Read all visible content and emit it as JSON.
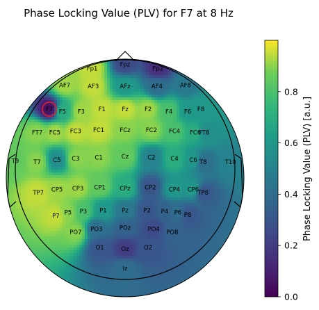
{
  "chart_data": {
    "type": "heatmap",
    "title": "Phase Locking Value (PLV) for F7 at 8 Hz",
    "colorbar_label": "Phase Locking Value (PLV) [a.u.]",
    "colormap": "viridis",
    "colorbar_range": [
      0.0,
      1.0
    ],
    "colorbar_ticks": [
      {
        "value": 0.0,
        "label": "0.0"
      },
      {
        "value": 0.2,
        "label": "0.2"
      },
      {
        "value": 0.4,
        "label": "0.4"
      },
      {
        "value": 0.6,
        "label": "0.6"
      },
      {
        "value": 0.8,
        "label": "0.8"
      }
    ],
    "seed_electrode": "F7",
    "electrodes": [
      {
        "name": "Fp1",
        "x": -0.3,
        "y": 0.92,
        "plv": 0.95
      },
      {
        "name": "Fpz",
        "x": 0.0,
        "y": 0.96,
        "plv": 0.25
      },
      {
        "name": "Fp2",
        "x": 0.3,
        "y": 0.92,
        "plv": 0.15
      },
      {
        "name": "AF7",
        "x": -0.55,
        "y": 0.77,
        "plv": 0.92
      },
      {
        "name": "AF3",
        "x": -0.29,
        "y": 0.76,
        "plv": 0.95
      },
      {
        "name": "AFz",
        "x": 0.0,
        "y": 0.76,
        "plv": 0.6
      },
      {
        "name": "AF4",
        "x": 0.29,
        "y": 0.76,
        "plv": 0.4
      },
      {
        "name": "AF8",
        "x": 0.55,
        "y": 0.77,
        "plv": 0.45
      },
      {
        "name": "F7",
        "x": -0.69,
        "y": 0.55,
        "plv": 0.05
      },
      {
        "name": "F5",
        "x": -0.57,
        "y": 0.53,
        "plv": 0.7
      },
      {
        "name": "F3",
        "x": -0.4,
        "y": 0.53,
        "plv": 0.92
      },
      {
        "name": "F1",
        "x": -0.21,
        "y": 0.55,
        "plv": 0.95
      },
      {
        "name": "Fz",
        "x": 0.0,
        "y": 0.55,
        "plv": 0.95
      },
      {
        "name": "F2",
        "x": 0.21,
        "y": 0.55,
        "plv": 0.92
      },
      {
        "name": "F4",
        "x": 0.4,
        "y": 0.53,
        "plv": 0.8
      },
      {
        "name": "F6",
        "x": 0.57,
        "y": 0.53,
        "plv": 0.6
      },
      {
        "name": "F8",
        "x": 0.69,
        "y": 0.55,
        "plv": 0.6
      },
      {
        "name": "FT7",
        "x": -0.8,
        "y": 0.34,
        "plv": 0.9
      },
      {
        "name": "FC5",
        "x": -0.64,
        "y": 0.34,
        "plv": 0.92
      },
      {
        "name": "FC3",
        "x": -0.45,
        "y": 0.35,
        "plv": 0.95
      },
      {
        "name": "FC1",
        "x": -0.24,
        "y": 0.36,
        "plv": 0.95
      },
      {
        "name": "FCz",
        "x": 0.0,
        "y": 0.36,
        "plv": 0.9
      },
      {
        "name": "FC2",
        "x": 0.24,
        "y": 0.36,
        "plv": 0.9
      },
      {
        "name": "FC4",
        "x": 0.45,
        "y": 0.35,
        "plv": 0.8
      },
      {
        "name": "FC6",
        "x": 0.64,
        "y": 0.34,
        "plv": 0.7
      },
      {
        "name": "FT8",
        "x": 0.72,
        "y": 0.34,
        "plv": 0.55
      },
      {
        "name": "T9",
        "x": -1.0,
        "y": 0.08,
        "plv": 0.85
      },
      {
        "name": "T7",
        "x": -0.8,
        "y": 0.07,
        "plv": 0.9
      },
      {
        "name": "C5",
        "x": -0.62,
        "y": 0.09,
        "plv": 0.55
      },
      {
        "name": "C3",
        "x": -0.45,
        "y": 0.1,
        "plv": 0.9
      },
      {
        "name": "C1",
        "x": -0.24,
        "y": 0.11,
        "plv": 0.9
      },
      {
        "name": "Cz",
        "x": 0.0,
        "y": 0.12,
        "plv": 0.85
      },
      {
        "name": "C2",
        "x": 0.24,
        "y": 0.11,
        "plv": 0.5
      },
      {
        "name": "C4",
        "x": 0.45,
        "y": 0.1,
        "plv": 0.7
      },
      {
        "name": "C6",
        "x": 0.62,
        "y": 0.09,
        "plv": 0.6
      },
      {
        "name": "T8",
        "x": 0.71,
        "y": 0.07,
        "plv": 0.4
      },
      {
        "name": "T10",
        "x": 0.96,
        "y": 0.07,
        "plv": 0.5
      },
      {
        "name": "TP7",
        "x": -0.79,
        "y": -0.21,
        "plv": 0.95
      },
      {
        "name": "CP5",
        "x": -0.62,
        "y": -0.18,
        "plv": 0.92
      },
      {
        "name": "CP3",
        "x": -0.43,
        "y": -0.17,
        "plv": 0.92
      },
      {
        "name": "CP1",
        "x": -0.23,
        "y": -0.16,
        "plv": 0.85
      },
      {
        "name": "CPz",
        "x": 0.0,
        "y": -0.17,
        "plv": 0.7
      },
      {
        "name": "CP2",
        "x": 0.23,
        "y": -0.16,
        "plv": 0.3
      },
      {
        "name": "CP4",
        "x": 0.45,
        "y": -0.18,
        "plv": 0.6
      },
      {
        "name": "CP6",
        "x": 0.62,
        "y": -0.18,
        "plv": 0.6
      },
      {
        "name": "TP8",
        "x": 0.71,
        "y": -0.21,
        "plv": 0.3
      },
      {
        "name": "P7",
        "x": -0.63,
        "y": -0.42,
        "plv": 0.95
      },
      {
        "name": "P5",
        "x": -0.52,
        "y": -0.39,
        "plv": 0.9
      },
      {
        "name": "P3",
        "x": -0.38,
        "y": -0.38,
        "plv": 0.8
      },
      {
        "name": "P1",
        "x": -0.2,
        "y": -0.37,
        "plv": 0.6
      },
      {
        "name": "Pz",
        "x": 0.0,
        "y": -0.37,
        "plv": 0.45
      },
      {
        "name": "P2",
        "x": 0.2,
        "y": -0.37,
        "plv": 0.3
      },
      {
        "name": "P4",
        "x": 0.36,
        "y": -0.38,
        "plv": 0.35
      },
      {
        "name": "P6",
        "x": 0.48,
        "y": -0.39,
        "plv": 0.4
      },
      {
        "name": "P8",
        "x": 0.57,
        "y": -0.41,
        "plv": 0.3
      },
      {
        "name": "PO7",
        "x": -0.45,
        "y": -0.57,
        "plv": 0.9
      },
      {
        "name": "PO3",
        "x": -0.26,
        "y": -0.54,
        "plv": 0.4
      },
      {
        "name": "POz",
        "x": 0.0,
        "y": -0.53,
        "plv": 0.35
      },
      {
        "name": "PO4",
        "x": 0.26,
        "y": -0.54,
        "plv": 0.25
      },
      {
        "name": "PO8",
        "x": 0.43,
        "y": -0.57,
        "plv": 0.35
      },
      {
        "name": "O1",
        "x": -0.23,
        "y": -0.71,
        "plv": 0.3
      },
      {
        "name": "Oz",
        "x": 0.0,
        "y": -0.72,
        "plv": 0.2
      },
      {
        "name": "O2",
        "x": 0.21,
        "y": -0.71,
        "plv": 0.3
      },
      {
        "name": "Iz",
        "x": 0.0,
        "y": -0.9,
        "plv": 0.4
      }
    ]
  }
}
